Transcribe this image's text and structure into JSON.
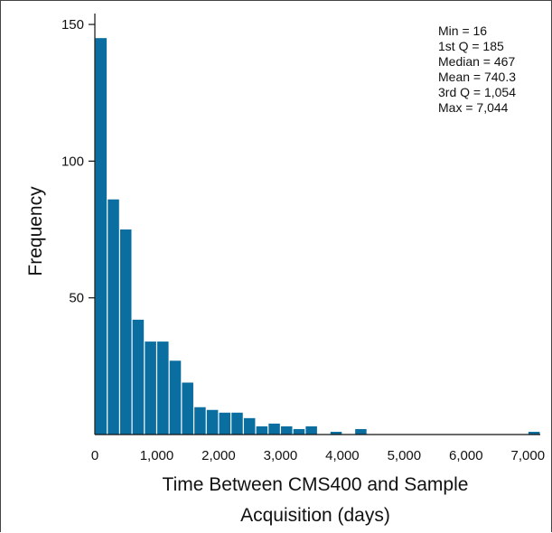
{
  "chart_data": {
    "type": "bar",
    "subtype": "histogram",
    "bar_color": "#0a6ea0",
    "bin_width": 200,
    "bin_start": 0,
    "counts": [
      145,
      86,
      75,
      42,
      34,
      34,
      27,
      19,
      10,
      9,
      8,
      8,
      6,
      3,
      4,
      3,
      2,
      3,
      0,
      1,
      0,
      2,
      0,
      0,
      0,
      0,
      0,
      0,
      0,
      0,
      0,
      0,
      0,
      0,
      0,
      1
    ],
    "xlim": [
      0,
      7200
    ],
    "ylim": [
      0,
      152
    ],
    "x_ticks": [
      0,
      1000,
      2000,
      3000,
      4000,
      5000,
      6000,
      7000
    ],
    "x_tick_labels": [
      "0",
      "1,000",
      "2,000",
      "3,000",
      "4,000",
      "5,000",
      "6,000",
      "7,000"
    ],
    "y_ticks": [
      50,
      100,
      150
    ],
    "y_tick_labels": [
      "50",
      "100",
      "150"
    ],
    "xlabel_line1": "Time Between CMS400 and Sample",
    "xlabel_line2": "Acquisition (days)",
    "ylabel": "Frequency",
    "stats": [
      "Min = 16",
      "1st Q = 185",
      "Median = 467",
      "Mean = 740.3",
      "3rd Q = 1,054",
      "Max = 7,044"
    ]
  }
}
